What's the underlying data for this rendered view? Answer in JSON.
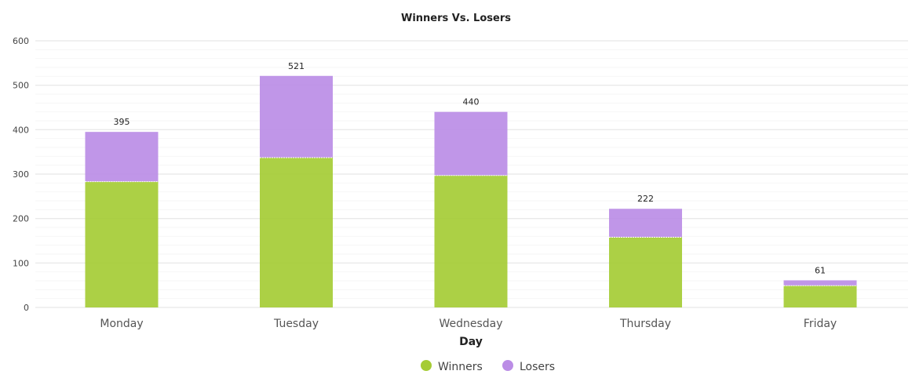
{
  "chart_data": {
    "type": "bar",
    "stacked": true,
    "title": "Winners Vs. Losers",
    "xlabel": "Day",
    "ylabel": "",
    "categories": [
      "Monday",
      "Tuesday",
      "Wednesday",
      "Thursday",
      "Friday"
    ],
    "series": [
      {
        "name": "Winners",
        "values": [
          283,
          337,
          297,
          158,
          49
        ],
        "color": "#a5cc35"
      },
      {
        "name": "Losers",
        "values": [
          112,
          184,
          143,
          64,
          12
        ],
        "color": "#bb8de6"
      }
    ],
    "totals": [
      "395",
      "521",
      "440",
      "222",
      "61"
    ],
    "ylim": [
      0,
      600
    ],
    "yticks": [
      "0",
      "100",
      "200",
      "300",
      "400",
      "500",
      "600"
    ],
    "grid": true,
    "legend_position": "bottom"
  }
}
